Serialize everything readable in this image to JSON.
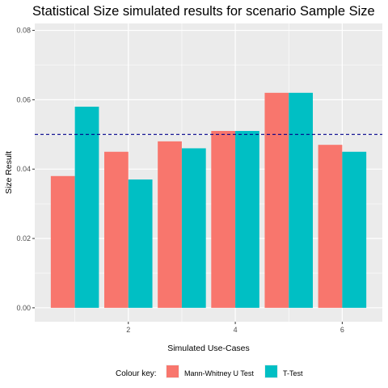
{
  "chart_data": {
    "type": "bar",
    "title": "Statistical Size simulated results for scenario Sample Size",
    "xlabel": "Simulated Use-Cases",
    "ylabel": "Size Result",
    "x": [
      1,
      2,
      3,
      4,
      5,
      6
    ],
    "xlim": [
      0.25,
      6.75
    ],
    "x_ticks": [
      2,
      4,
      6
    ],
    "ylim": [
      -0.004,
      0.082
    ],
    "y_ticks": [
      0.0,
      0.02,
      0.04,
      0.06,
      0.08
    ],
    "y_tick_labels": [
      "0.00",
      "0.02",
      "0.04",
      "0.06",
      "0.08"
    ],
    "series": [
      {
        "name": "Mann-Whitney U Test",
        "color": "#F8766D",
        "values": [
          0.038,
          0.045,
          0.048,
          0.051,
          0.062,
          0.047
        ]
      },
      {
        "name": "T-Test",
        "color": "#00BFC4",
        "values": [
          0.058,
          0.037,
          0.046,
          0.051,
          0.062,
          0.045
        ]
      }
    ],
    "reference_line": {
      "y": 0.05,
      "style": "dashed",
      "color": "#00008B"
    },
    "legend": {
      "title": "Colour key:",
      "position": "bottom"
    },
    "panel_background": "#EBEBEB",
    "grid": true
  }
}
